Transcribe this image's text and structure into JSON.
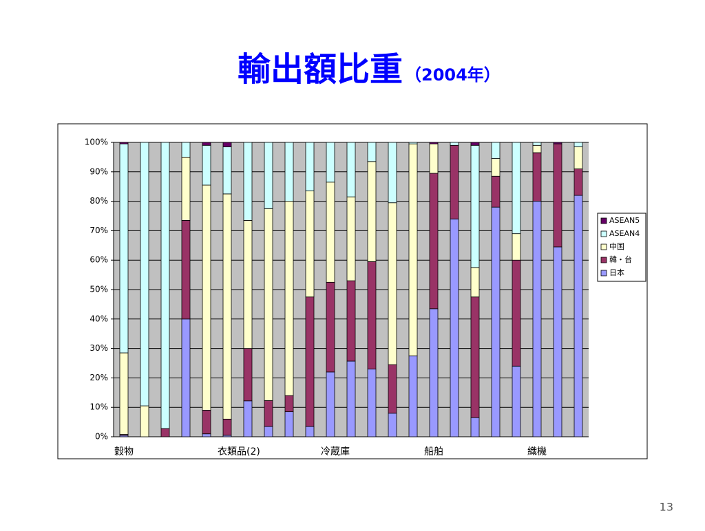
{
  "chart_data": {
    "type": "stacked_bar",
    "title": "輸出額比重",
    "subtitle": "（2004年）",
    "categories": [
      "穀物",
      null,
      null,
      null,
      null,
      "衣類品(2)",
      null,
      null,
      null,
      null,
      "冷蔵庫",
      null,
      null,
      null,
      null,
      "船舶",
      null,
      null,
      null,
      null,
      "織機",
      null,
      null
    ],
    "series": [
      {
        "name": "日本",
        "color": "#9999ff",
        "values": [
          0.5,
          0,
          0,
          40,
          1,
          0.5,
          12.2,
          3.5,
          8.5,
          3.5,
          22,
          25.7,
          23,
          8,
          27.5,
          43.5,
          74,
          6.5,
          78,
          24,
          80,
          64.5,
          82
        ]
      },
      {
        "name": "韓・台",
        "color": "#993366",
        "values": [
          0.3,
          0,
          2.8,
          33.5,
          8,
          5.5,
          17.8,
          8.8,
          5.5,
          44,
          30.5,
          27.3,
          36.5,
          16.5,
          0,
          46,
          25,
          41,
          10.5,
          36,
          16.5,
          35,
          9
        ]
      },
      {
        "name": "中国",
        "color": "#ffffcc",
        "values": [
          27.7,
          10.5,
          0,
          21.5,
          76.5,
          76.5,
          43.5,
          65.2,
          66,
          36,
          34,
          28.5,
          34,
          55,
          72,
          10,
          0,
          10,
          6,
          9,
          2.5,
          0,
          7.5
        ]
      },
      {
        "name": "ASEAN4",
        "color": "#ccffff",
        "values": [
          71,
          89.5,
          97.2,
          5,
          13.5,
          16,
          26.5,
          22.5,
          20,
          16.5,
          13.5,
          18.5,
          6.5,
          20.5,
          0.5,
          0,
          1,
          41.5,
          5.5,
          31,
          1,
          0,
          1.5
        ]
      },
      {
        "name": "ASEAN5",
        "color": "#660066",
        "values": [
          0.5,
          0,
          0,
          0,
          1,
          1.5,
          0,
          0,
          0,
          0,
          0,
          0,
          0,
          0,
          0,
          0.5,
          0,
          1,
          0,
          0,
          0,
          0.5,
          0
        ]
      }
    ],
    "ylim": [
      0,
      100
    ],
    "yticks": [
      {
        "value": 0,
        "label": "0%"
      },
      {
        "value": 10,
        "label": "10%"
      },
      {
        "value": 20,
        "label": "20%"
      },
      {
        "value": 30,
        "label": "30%"
      },
      {
        "value": 40,
        "label": "40%"
      },
      {
        "value": 50,
        "label": "50%"
      },
      {
        "value": 60,
        "label": "60%"
      },
      {
        "value": 70,
        "label": "70%"
      },
      {
        "value": 80,
        "label": "80%"
      },
      {
        "value": 90,
        "label": "90%"
      },
      {
        "value": 100,
        "label": "100%"
      }
    ],
    "grid": true,
    "legend": "right",
    "plot_background": "#c0c0c0"
  },
  "page_number": "13"
}
